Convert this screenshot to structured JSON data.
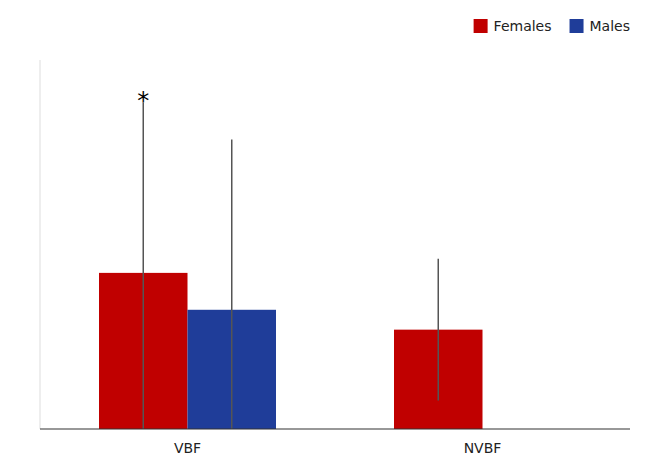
{
  "chart_data": {
    "type": "bar",
    "categories": [
      "VBF",
      "NVBF"
    ],
    "series": [
      {
        "name": "Females",
        "color": "#C00000",
        "values": [
          55,
          35
        ],
        "errors_up": [
          60,
          25
        ],
        "errors_down": [
          55,
          25
        ]
      },
      {
        "name": "Males",
        "color": "#1F3D99",
        "values": [
          42,
          null
        ],
        "errors_up": [
          60,
          null
        ],
        "errors_down": [
          42,
          null
        ]
      }
    ],
    "ylim": [
      0,
      130
    ],
    "tick_labels": "x",
    "grid": false,
    "legend": "upper right",
    "annotations": [
      {
        "text": "*",
        "category": "VBF",
        "series": "Females",
        "y": 117
      }
    ]
  }
}
